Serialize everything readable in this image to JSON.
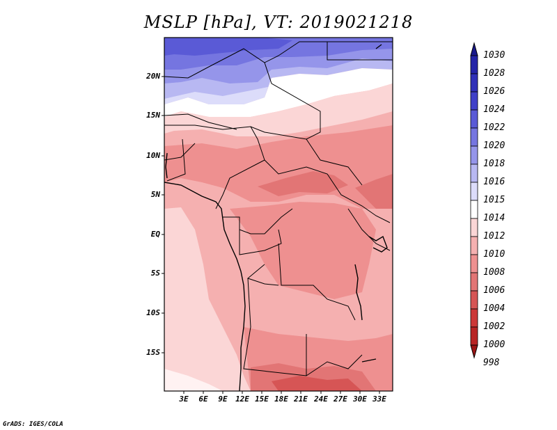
{
  "title": "MSLP [hPa], VT: 2019021218",
  "credit": "GrADS: IGES/COLA",
  "lat_labels": [
    "20N",
    "15N",
    "10N",
    "5N",
    "EQ",
    "5S",
    "10S",
    "15S"
  ],
  "lon_labels": [
    "3E",
    "6E",
    "9E",
    "12E",
    "15E",
    "18E",
    "21E",
    "24E",
    "27E",
    "30E",
    "33E"
  ],
  "colorbar": {
    "labels": [
      "1030",
      "1028",
      "1026",
      "1024",
      "1022",
      "1020",
      "1018",
      "1016",
      "1015",
      "1014",
      "1012",
      "1010",
      "1008",
      "1006",
      "1004",
      "1002",
      "1000",
      "998"
    ],
    "colors": [
      "#1a1a8c",
      "#2424a8",
      "#3030b8",
      "#4040c8",
      "#5a5ad6",
      "#7575e0",
      "#9595ea",
      "#b8b8f2",
      "#dcdcfa",
      "#ffffff",
      "#fbd6d6",
      "#f5b0b0",
      "#ee9090",
      "#e27575",
      "#d65555",
      "#cc3838",
      "#b82424",
      "#9c1515"
    ]
  },
  "map": {
    "variable": "Mean sea level pressure",
    "units": "hPa",
    "lat_range": [
      -19,
      24
    ],
    "lon_range": [
      0,
      34.5
    ]
  }
}
